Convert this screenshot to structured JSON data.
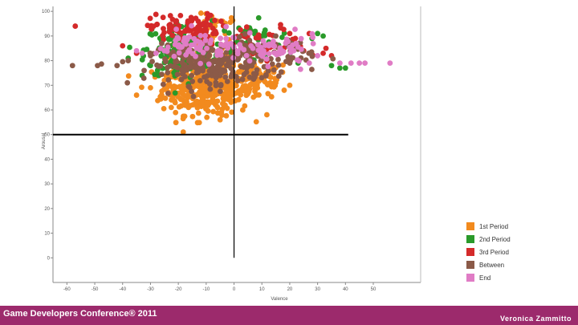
{
  "chart_data": {
    "type": "scatter",
    "title": "",
    "xlabel": "Valence",
    "ylabel": "Arousal",
    "xlim": [
      -65,
      67
    ],
    "ylim": [
      -10,
      102
    ],
    "xticks": [
      -60,
      -50,
      -40,
      -30,
      -20,
      -10,
      0,
      10,
      20,
      30,
      40,
      50
    ],
    "yticks": [
      0,
      10,
      20,
      30,
      40,
      50,
      60,
      70,
      80,
      90,
      100
    ],
    "reference_lines": [
      {
        "orientation": "horizontal",
        "value": 50,
        "from": -65,
        "to": 41
      },
      {
        "orientation": "vertical",
        "value": 0,
        "from": 0,
        "to": 102
      }
    ],
    "legend": "bottom-right",
    "grid": false,
    "series": [
      {
        "name": "1st Period",
        "color": "#f28a1e",
        "clusters": [
          {
            "cx": -10,
            "cy": 68,
            "sx": 8,
            "sy": 5,
            "n": 320
          },
          {
            "cx": 8,
            "cy": 72,
            "sx": 6,
            "sy": 4,
            "n": 90
          },
          {
            "cx": -8,
            "cy": 85,
            "sx": 5,
            "sy": 8,
            "n": 80
          },
          {
            "cx": -18,
            "cy": 75,
            "sx": 5,
            "sy": 5,
            "n": 60
          }
        ],
        "points": [
          [
            -10,
            99
          ],
          [
            -8,
            98
          ],
          [
            -6,
            96
          ],
          [
            -35,
            66
          ],
          [
            -30,
            69
          ],
          [
            -5,
            56
          ],
          [
            20,
            70
          ],
          [
            18,
            68
          ],
          [
            15,
            71
          ],
          [
            -25,
            72
          ]
        ]
      },
      {
        "name": "2nd Period",
        "color": "#2a9a2a",
        "clusters": [
          {
            "cx": -20,
            "cy": 84,
            "sx": 6,
            "sy": 6,
            "n": 150
          },
          {
            "cx": 5,
            "cy": 88,
            "sx": 6,
            "sy": 4,
            "n": 60
          }
        ],
        "points": [
          [
            -38,
            81
          ],
          [
            -30,
            78
          ],
          [
            30,
            91
          ],
          [
            28,
            89
          ],
          [
            32,
            90
          ],
          [
            35,
            78
          ],
          [
            38,
            77
          ],
          [
            40,
            77
          ],
          [
            23,
            79
          ],
          [
            20,
            82
          ],
          [
            -33,
            74
          ],
          [
            10,
            90
          ]
        ]
      },
      {
        "name": "3rd Period",
        "color": "#d42a2a",
        "clusters": [
          {
            "cx": -18,
            "cy": 93,
            "sx": 6,
            "sy": 3,
            "n": 90
          },
          {
            "cx": 10,
            "cy": 86,
            "sx": 8,
            "sy": 4,
            "n": 40
          }
        ],
        "points": [
          [
            -57,
            94
          ],
          [
            -40,
            86
          ],
          [
            -35,
            83
          ],
          [
            20,
            91
          ],
          [
            22,
            89
          ],
          [
            27,
            91
          ],
          [
            33,
            85
          ],
          [
            32,
            83
          ],
          [
            35,
            82
          ],
          [
            25,
            84
          ]
        ]
      },
      {
        "name": "Between",
        "color": "#8b5a48",
        "clusters": [
          {
            "cx": -10,
            "cy": 78,
            "sx": 10,
            "sy": 4,
            "n": 200
          },
          {
            "cx": 8,
            "cy": 82,
            "sx": 10,
            "sy": 4,
            "n": 100
          }
        ],
        "points": [
          [
            -58,
            78
          ],
          [
            -49,
            78
          ],
          [
            -38,
            80
          ],
          [
            -42,
            78
          ],
          [
            20,
            79
          ],
          [
            22,
            86
          ],
          [
            15,
            90
          ],
          [
            -30,
            82
          ]
        ]
      },
      {
        "name": "End",
        "color": "#e07cc5",
        "clusters": [
          {
            "cx": -12,
            "cy": 86,
            "sx": 8,
            "sy": 3,
            "n": 70
          },
          {
            "cx": 15,
            "cy": 84,
            "sx": 8,
            "sy": 3,
            "n": 60
          }
        ],
        "points": [
          [
            -35,
            84
          ],
          [
            -33,
            83
          ],
          [
            -28,
            83
          ],
          [
            -25,
            84
          ],
          [
            38,
            79
          ],
          [
            42,
            79
          ],
          [
            45,
            79
          ],
          [
            47,
            79
          ],
          [
            56,
            79
          ],
          [
            30,
            82
          ],
          [
            27,
            79
          ]
        ]
      }
    ]
  },
  "legend": {
    "items": [
      {
        "label": "1st Period",
        "color": "#f28a1e"
      },
      {
        "label": "2nd Period",
        "color": "#2a9a2a"
      },
      {
        "label": "3rd Period",
        "color": "#d42a2a"
      },
      {
        "label": "Between",
        "color": "#8b5a48"
      },
      {
        "label": "End",
        "color": "#e07cc5"
      }
    ]
  },
  "footer": {
    "conference": "Game Developers Conference® 2011",
    "author": "Veronica Zammitto"
  }
}
